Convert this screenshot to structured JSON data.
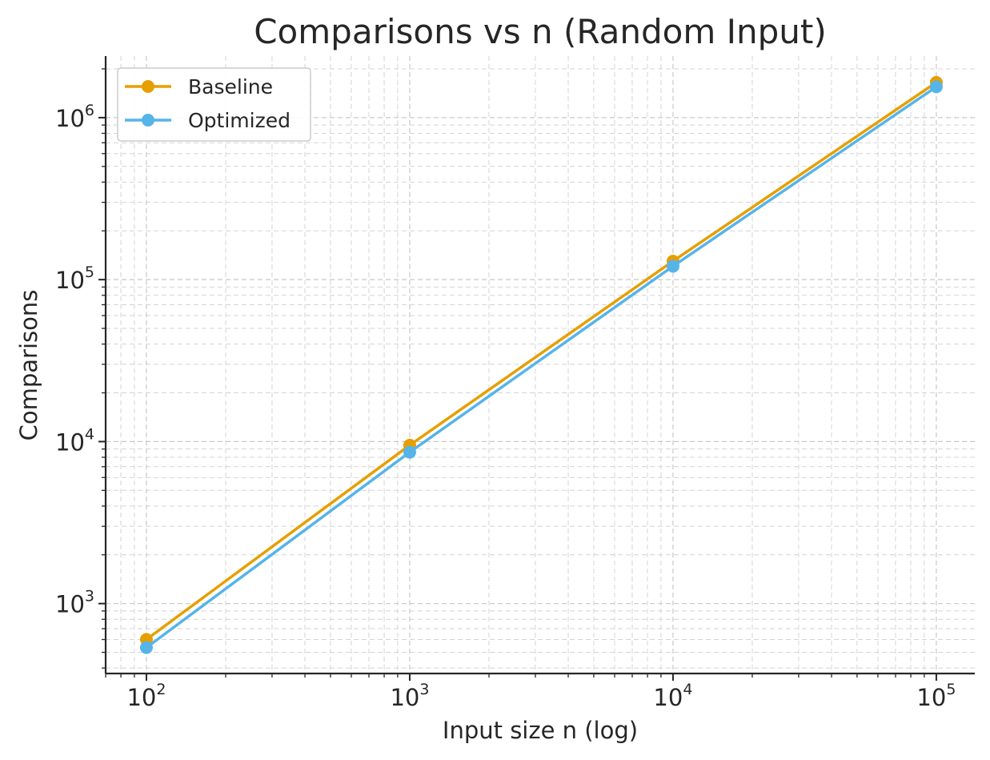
{
  "chart_data": {
    "type": "line",
    "title": "Comparisons vs n (Random Input)",
    "xlabel": "Input size n (log)",
    "ylabel": "Comparisons",
    "xscale": "log",
    "yscale": "log",
    "xlim": [
      70,
      140000
    ],
    "ylim": [
      370,
      2400000
    ],
    "x_ticks": [
      {
        "value": 100,
        "base": "10",
        "exp": "2"
      },
      {
        "value": 1000,
        "base": "10",
        "exp": "3"
      },
      {
        "value": 10000,
        "base": "10",
        "exp": "4"
      },
      {
        "value": 100000,
        "base": "10",
        "exp": "5"
      }
    ],
    "y_ticks": [
      {
        "value": 1000,
        "base": "10",
        "exp": "3"
      },
      {
        "value": 10000,
        "base": "10",
        "exp": "4"
      },
      {
        "value": 100000,
        "base": "10",
        "exp": "5"
      },
      {
        "value": 1000000,
        "base": "10",
        "exp": "6"
      }
    ],
    "grid": true,
    "legend_position": "top-left",
    "x": [
      100,
      1000,
      10000,
      100000
    ],
    "series": [
      {
        "name": "Baseline",
        "color": "#E69F00",
        "values": [
          600,
          9500,
          130000,
          1650000
        ]
      },
      {
        "name": "Optimized",
        "color": "#56B4E9",
        "values": [
          535,
          8600,
          121000,
          1550000
        ]
      }
    ]
  }
}
